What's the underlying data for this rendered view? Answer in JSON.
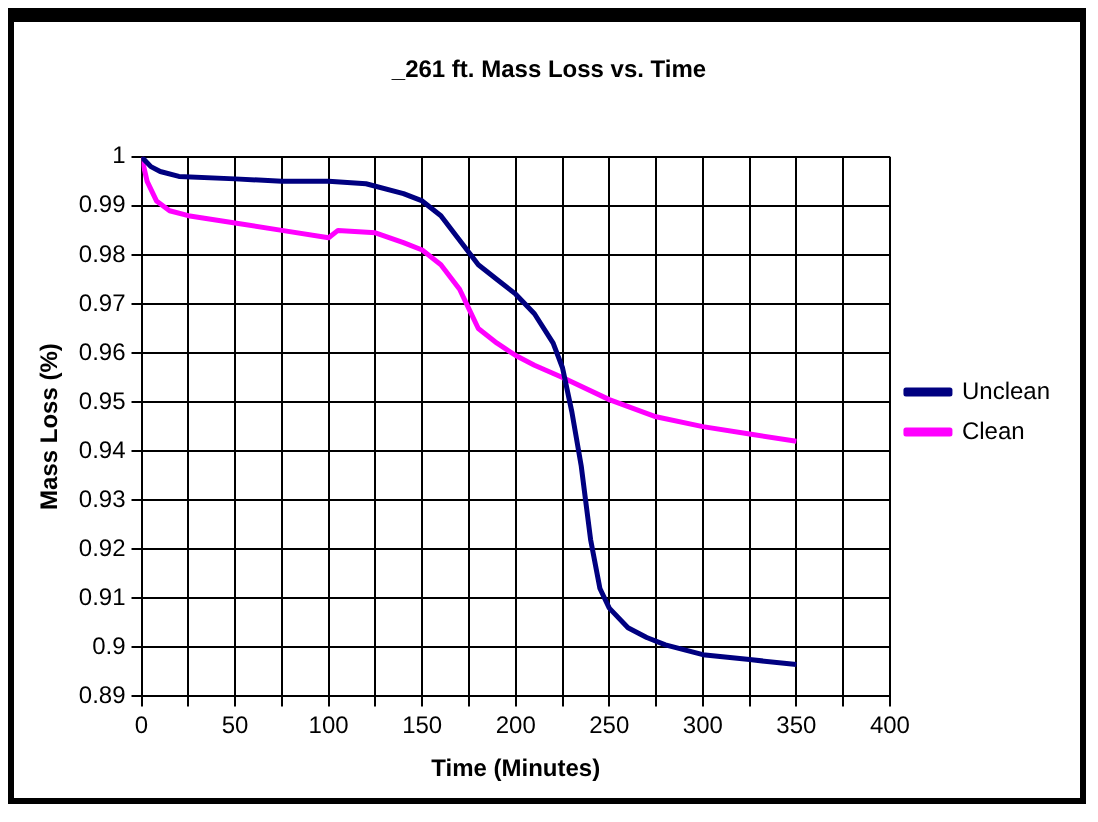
{
  "chart_data": {
    "type": "line",
    "title": "_261 ft. Mass Loss vs. Time",
    "xlabel": "Time (Minutes)",
    "ylabel": "Mass Loss (%)",
    "xlim": [
      0,
      400
    ],
    "xticks": [
      0,
      {
        "value": 25,
        "label": null
      },
      50,
      {
        "value": 75,
        "label": null
      },
      100,
      {
        "value": 125,
        "label": null
      },
      150,
      {
        "value": 175,
        "label": null
      },
      200,
      {
        "value": 225,
        "label": null
      },
      250,
      {
        "value": 275,
        "label": null
      },
      300,
      {
        "value": 325,
        "label": null
      },
      350,
      {
        "value": 375,
        "label": null
      },
      400
    ],
    "ylim": [
      0.89,
      1
    ],
    "yticks": [
      0.89,
      0.9,
      0.91,
      0.92,
      0.93,
      0.94,
      0.95,
      0.96,
      0.97,
      0.98,
      0.99,
      1
    ],
    "grid": true,
    "legend": "right",
    "marker": "none",
    "line_style": "solid",
    "series": [
      {
        "name": "Unclean",
        "color": "#000080",
        "x": [
          0,
          5,
          10,
          20,
          50,
          75,
          100,
          120,
          140,
          150,
          160,
          170,
          180,
          190,
          200,
          210,
          220,
          225,
          230,
          235,
          240,
          245,
          250,
          260,
          270,
          280,
          300,
          325,
          350
        ],
        "values": [
          1,
          0.998,
          0.997,
          0.996,
          0.9955,
          0.995,
          0.995,
          0.9945,
          0.9925,
          0.991,
          0.988,
          0.983,
          0.978,
          0.975,
          0.972,
          0.968,
          0.962,
          0.957,
          0.948,
          0.937,
          0.922,
          0.912,
          0.908,
          0.904,
          0.902,
          0.9005,
          0.8985,
          0.8975,
          0.8965
        ]
      },
      {
        "name": "Clean",
        "color": "#ff00ff",
        "x": [
          0,
          3,
          8,
          15,
          25,
          50,
          75,
          100,
          105,
          125,
          140,
          150,
          160,
          170,
          175,
          180,
          190,
          200,
          210,
          225,
          250,
          275,
          300,
          325,
          350
        ],
        "values": [
          1,
          0.995,
          0.991,
          0.989,
          0.988,
          0.9865,
          0.985,
          0.9835,
          0.985,
          0.9845,
          0.9825,
          0.981,
          0.978,
          0.973,
          0.969,
          0.965,
          0.962,
          0.9595,
          0.9575,
          0.955,
          0.9505,
          0.947,
          0.945,
          0.9435,
          0.942
        ]
      }
    ]
  }
}
